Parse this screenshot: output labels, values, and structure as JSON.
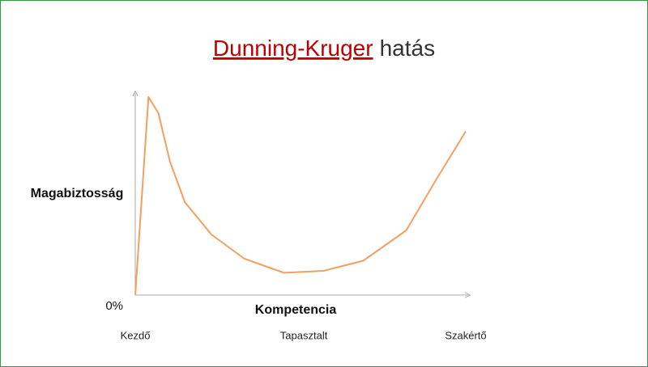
{
  "chart_data": {
    "type": "line",
    "title": [
      {
        "text": "Dunning-Kruger",
        "color": "#c00000",
        "underline": true
      },
      {
        "text": "hatás",
        "color": "#333333",
        "underline": false
      }
    ],
    "ylabel": "Magabiztosság",
    "xlabel": "Kompetencia",
    "x": [
      0,
      4,
      7,
      10.5,
      15,
      23,
      33,
      45,
      57,
      69,
      82,
      91,
      100
    ],
    "values": [
      0,
      98,
      90,
      66,
      46,
      30,
      18,
      11,
      12,
      17,
      32,
      57,
      81
    ],
    "color": "#f0a060",
    "xlim": [
      0,
      100
    ],
    "ylim": [
      0,
      100
    ],
    "xticks": [
      {
        "value": 0,
        "label": "Kezdő"
      },
      {
        "value": 51,
        "label": "Tapasztalt"
      },
      {
        "value": 100,
        "label": "Szakértő"
      }
    ],
    "yticks": [
      {
        "value": 0,
        "label": "0%"
      }
    ],
    "grid": false
  }
}
